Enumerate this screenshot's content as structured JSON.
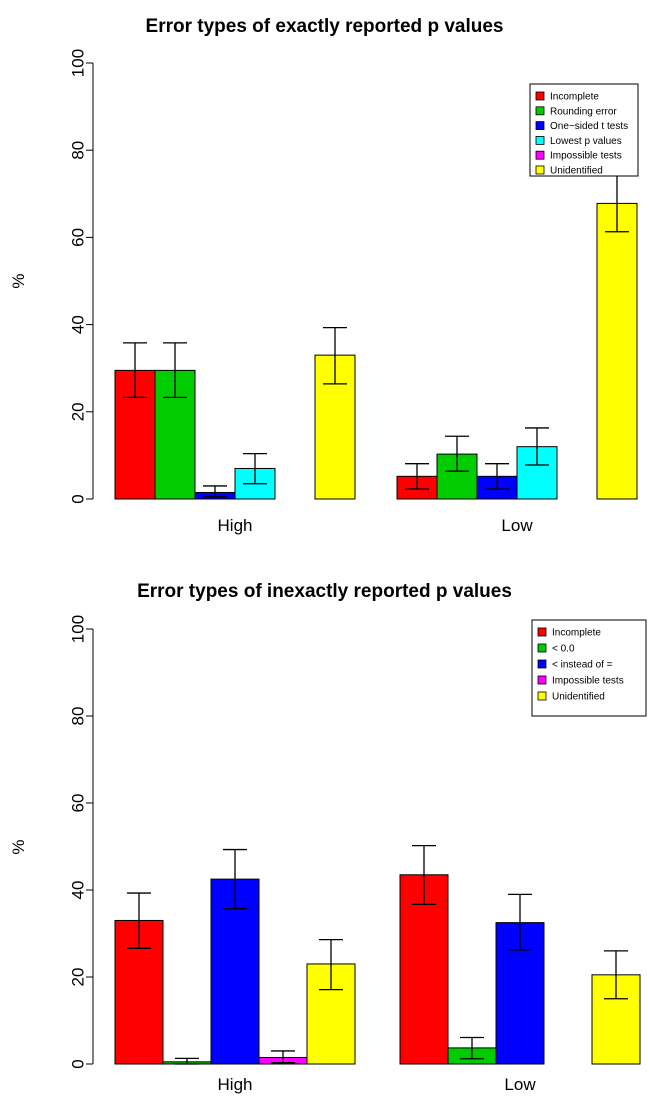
{
  "chart_data": [
    {
      "type": "bar",
      "title": "Error types of exactly reported p values",
      "xlabel": "",
      "ylabel": "%",
      "ylim": [
        0,
        100
      ],
      "yticks": [
        0,
        20,
        40,
        60,
        80,
        100
      ],
      "categories": [
        "High",
        "Low"
      ],
      "legend_position": "top-right",
      "series": [
        {
          "name": "Incomplete",
          "color": "#ff0000",
          "values": [
            29.5,
            5.2
          ],
          "err_low": [
            23.3,
            2.3
          ],
          "err_high": [
            35.8,
            8.1
          ]
        },
        {
          "name": "Rounding error",
          "color": "#00cc00",
          "values": [
            29.5,
            10.3
          ],
          "err_low": [
            23.3,
            6.4
          ],
          "err_high": [
            35.8,
            14.4
          ]
        },
        {
          "name": "One−sided t tests",
          "color": "#0000ff",
          "values": [
            1.5,
            5.2
          ],
          "err_low": [
            0.5,
            2.3
          ],
          "err_high": [
            3.0,
            8.1
          ]
        },
        {
          "name": "Lowest p values",
          "color": "#00ffff",
          "values": [
            7.0,
            12.0
          ],
          "err_low": [
            3.5,
            7.8
          ],
          "err_high": [
            10.4,
            16.3
          ]
        },
        {
          "name": "Impossible tests",
          "color": "#ff00ff",
          "values": [
            0,
            0
          ],
          "err_low": [
            null,
            null
          ],
          "err_high": [
            null,
            null
          ]
        },
        {
          "name": "Unidentified",
          "color": "#ffff00",
          "values": [
            33.0,
            67.8
          ],
          "err_low": [
            26.4,
            61.3
          ],
          "err_high": [
            39.3,
            74.3
          ]
        }
      ]
    },
    {
      "type": "bar",
      "title": "Error types of inexactly reported p values",
      "xlabel": "",
      "ylabel": "%",
      "ylim": [
        0,
        100
      ],
      "yticks": [
        0,
        20,
        40,
        60,
        80,
        100
      ],
      "categories": [
        "High",
        "Low"
      ],
      "legend_position": "top-right",
      "series": [
        {
          "name": "Incomplete",
          "color": "#ff0000",
          "values": [
            33.0,
            43.5
          ],
          "err_low": [
            26.6,
            36.7
          ],
          "err_high": [
            39.3,
            50.2
          ]
        },
        {
          "name": "< 0.0",
          "color": "#00cc00",
          "values": [
            0.5,
            3.7
          ],
          "err_low": [
            0.0,
            1.2
          ],
          "err_high": [
            1.3,
            6.1
          ]
        },
        {
          "name": "< instead of =",
          "color": "#0000ff",
          "values": [
            42.5,
            32.5
          ],
          "err_low": [
            35.7,
            26.2
          ],
          "err_high": [
            49.3,
            39.0
          ]
        },
        {
          "name": "Impossible tests",
          "color": "#ff00ff",
          "values": [
            1.5,
            0
          ],
          "err_low": [
            0.3,
            null
          ],
          "err_high": [
            3.0,
            null
          ]
        },
        {
          "name": "Unidentified",
          "color": "#ffff00",
          "values": [
            23.0,
            20.5
          ],
          "err_low": [
            17.1,
            15.0
          ],
          "err_high": [
            28.6,
            26.0
          ]
        }
      ]
    }
  ]
}
